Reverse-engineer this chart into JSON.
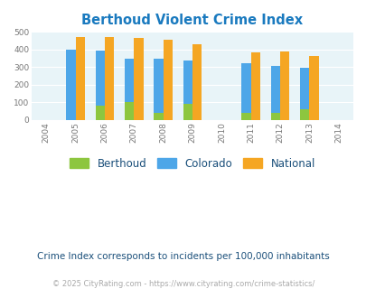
{
  "title": "Berthoud Violent Crime Index",
  "title_color": "#1a7abf",
  "bar_years": [
    2005,
    2006,
    2007,
    2008,
    2009,
    2011,
    2012,
    2013
  ],
  "berthoud_data": [
    0,
    80,
    100,
    42,
    93,
    42,
    42,
    58
  ],
  "colorado_data": [
    397,
    393,
    349,
    346,
    338,
    321,
    309,
    295
  ],
  "national_data": [
    470,
    473,
    467,
    455,
    432,
    386,
    387,
    365
  ],
  "color_berthoud": "#8dc63f",
  "color_colorado": "#4da6e8",
  "color_national": "#f5a623",
  "ylim": [
    0,
    500
  ],
  "yticks": [
    0,
    100,
    200,
    300,
    400,
    500
  ],
  "xticks": [
    2004,
    2005,
    2006,
    2007,
    2008,
    2009,
    2010,
    2011,
    2012,
    2013,
    2014
  ],
  "bg_color": "#e8f4f8",
  "fig_bg": "#ffffff",
  "footnote1": "Crime Index corresponds to incidents per 100,000 inhabitants",
  "footnote2": "© 2025 CityRating.com - https://www.cityrating.com/crime-statistics/",
  "footnote1_color": "#1a4f7a",
  "footnote2_color": "#aaaaaa",
  "footnote2_url_color": "#4da6e8",
  "legend_labels": [
    "Berthoud",
    "Colorado",
    "National"
  ],
  "bar_width": 0.32
}
